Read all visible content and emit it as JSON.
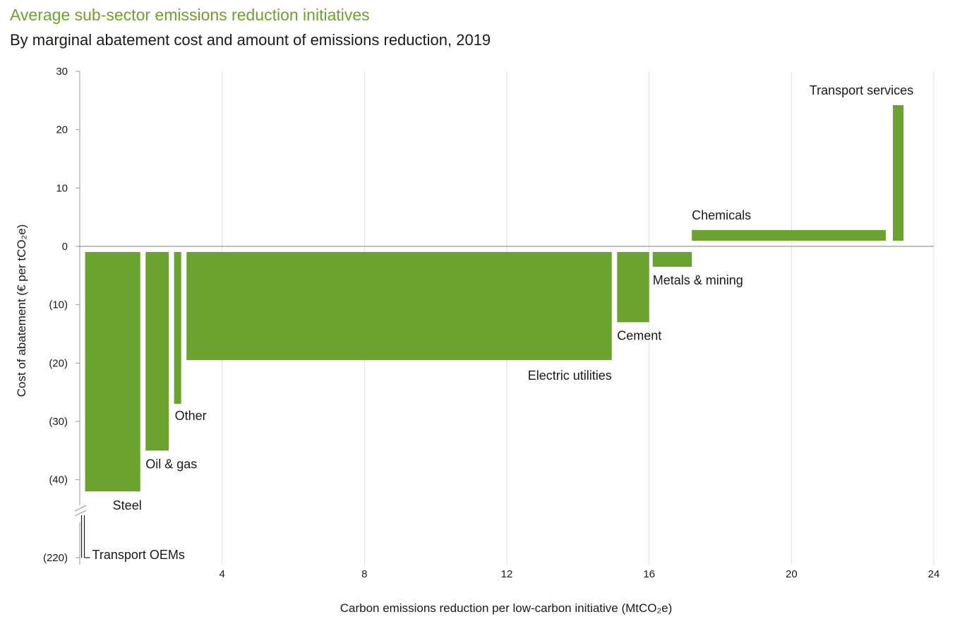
{
  "title": "Average sub-sector emissions reduction initiatives",
  "subtitle": "By marginal abatement cost and amount of emissions reduction, 2019",
  "colors": {
    "bar": "#6ca22f",
    "grid": "#dddddd",
    "axis": "#999999"
  },
  "chart_data": {
    "type": "bar",
    "title": "Average sub-sector emissions reduction initiatives",
    "subtitle": "By marginal abatement cost and amount of emissions reduction, 2019",
    "xlabel": "Carbon emissions reduction per low-carbon initiative (MtCO₂e)",
    "ylabel": "Cost of abatement (€ per tCO₂e)",
    "xlim": [
      0,
      24
    ],
    "xticks": [
      4,
      8,
      12,
      16,
      20,
      24
    ],
    "xtick_labels": [
      "4",
      "8",
      "12",
      "16",
      "20",
      "24"
    ],
    "ylim": [
      -42,
      30
    ],
    "yticks": [
      30,
      20,
      10,
      0,
      -10,
      -20,
      -30,
      -40
    ],
    "ytick_labels": [
      "30",
      "20",
      "10",
      "0",
      "(10)",
      "(20)",
      "(30)",
      "(40)"
    ],
    "y_break_label": "(220)",
    "grid": "vertical",
    "series": [
      {
        "category": "Transport OEMs",
        "x_start": 0.05,
        "x_end": 0.1,
        "cost": -220
      },
      {
        "category": "Steel",
        "x_start": 0.15,
        "x_end": 1.7,
        "cost": -42
      },
      {
        "category": "Oil & gas",
        "x_start": 1.85,
        "x_end": 2.5,
        "cost": -35
      },
      {
        "category": "Other",
        "x_start": 2.65,
        "x_end": 2.85,
        "cost": -27
      },
      {
        "category": "Electric utilities",
        "x_start": 3.0,
        "x_end": 14.95,
        "cost": -19.5
      },
      {
        "category": "Cement",
        "x_start": 15.1,
        "x_end": 16.0,
        "cost": -13
      },
      {
        "category": "Metals & mining",
        "x_start": 16.1,
        "x_end": 17.2,
        "cost": -3.5
      },
      {
        "category": "Chemicals",
        "x_start": 17.2,
        "x_end": 22.65,
        "cost": 2.8
      },
      {
        "category": "Transport services",
        "x_start": 22.85,
        "x_end": 23.15,
        "cost": 24.2
      }
    ]
  }
}
